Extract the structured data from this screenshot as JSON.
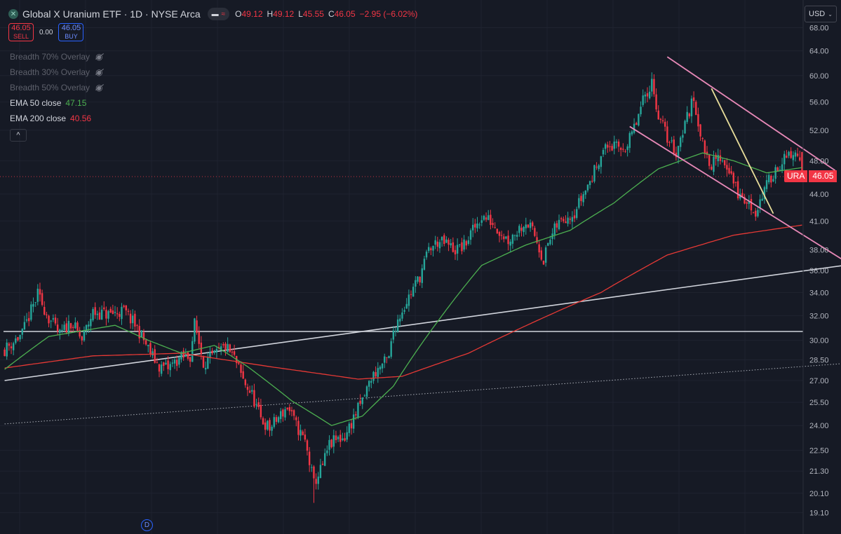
{
  "header": {
    "logo_glyph": "✕",
    "symbol_title": "Global X Uranium ETF · 1D · NYSE Arca",
    "ohlc": {
      "o_label": "O",
      "o_value": "49.12",
      "h_label": "H",
      "h_value": "49.12",
      "l_label": "L",
      "l_value": "45.55",
      "c_label": "C",
      "c_value": "46.05",
      "change": "−2.95 (−6.02%)"
    }
  },
  "trade": {
    "sell_price": "46.05",
    "sell_label": "SELL",
    "spread": "0.00",
    "buy_price": "46.05",
    "buy_label": "BUY"
  },
  "indicators": {
    "breadth70": "Breadth 70% Overlay",
    "breadth30": "Breadth 30% Overlay",
    "breadth50": "Breadth 50% Overlay",
    "ema50_label": "EMA 50 close",
    "ema50_value": "47.15",
    "ema200_label": "EMA 200 close",
    "ema200_value": "40.56",
    "collapse_glyph": "^"
  },
  "currency": {
    "label": "USD",
    "chevron": "⌄"
  },
  "last_price": {
    "symbol": "URA",
    "value": "46.05"
  },
  "event_marker": "D",
  "colors": {
    "background": "#161a25",
    "up": "#26a69a",
    "down": "#f23645",
    "ema50": "#4caf50",
    "ema200": "#e53935",
    "channel": "#e889b8",
    "wedge": "#e8dd9a",
    "trendline": "#d1d4dc",
    "grid": "#1f2330"
  },
  "chart_data": {
    "type": "candlestick",
    "y_scale": "log",
    "y_ticks": [
      "68.00",
      "64.00",
      "60.00",
      "56.00",
      "52.00",
      "48.00",
      "44.00",
      "41.00",
      "38.00",
      "36.00",
      "34.00",
      "32.00",
      "30.00",
      "28.50",
      "27.00",
      "25.50",
      "24.00",
      "22.50",
      "21.30",
      "20.10",
      "19.10"
    ],
    "close_anchors": [
      [
        0,
        29.3
      ],
      [
        8,
        30.5
      ],
      [
        15,
        33.8
      ],
      [
        20,
        31.8
      ],
      [
        25,
        30.4
      ],
      [
        30,
        31.5
      ],
      [
        35,
        30.0
      ],
      [
        40,
        32.3
      ],
      [
        47,
        32.1
      ],
      [
        54,
        32.4
      ],
      [
        60,
        31.0
      ],
      [
        66,
        29.0
      ],
      [
        70,
        28.0
      ],
      [
        74,
        27.9
      ],
      [
        79,
        28.6
      ],
      [
        84,
        28.8
      ],
      [
        86,
        31.3
      ],
      [
        90,
        28.3
      ],
      [
        95,
        28.8
      ],
      [
        100,
        29.5
      ],
      [
        104,
        28.6
      ],
      [
        108,
        27.0
      ],
      [
        112,
        26.0
      ],
      [
        116,
        24.4
      ],
      [
        120,
        23.8
      ],
      [
        124,
        24.5
      ],
      [
        128,
        25.2
      ],
      [
        132,
        24.0
      ],
      [
        136,
        23.0
      ],
      [
        140,
        20.6
      ],
      [
        144,
        21.6
      ],
      [
        147,
        22.8
      ],
      [
        150,
        23.1
      ],
      [
        154,
        23.3
      ],
      [
        158,
        24.5
      ],
      [
        162,
        25.6
      ],
      [
        166,
        27.2
      ],
      [
        170,
        28.0
      ],
      [
        174,
        28.6
      ],
      [
        176,
        30.8
      ],
      [
        180,
        32.5
      ],
      [
        184,
        34.0
      ],
      [
        188,
        35.5
      ],
      [
        192,
        38.0
      ],
      [
        196,
        38.8
      ],
      [
        200,
        38.6
      ],
      [
        204,
        38.0
      ],
      [
        208,
        38.4
      ],
      [
        212,
        40.0
      ],
      [
        216,
        41.5
      ],
      [
        220,
        41.0
      ],
      [
        224,
        40.0
      ],
      [
        228,
        39.0
      ],
      [
        232,
        40.0
      ],
      [
        236,
        41.0
      ],
      [
        240,
        39.5
      ],
      [
        244,
        37.0
      ],
      [
        246,
        38.6
      ],
      [
        250,
        40.5
      ],
      [
        254,
        41.5
      ],
      [
        258,
        42.0
      ],
      [
        262,
        44.0
      ],
      [
        266,
        46.0
      ],
      [
        270,
        49.0
      ],
      [
        274,
        50.0
      ],
      [
        278,
        49.5
      ],
      [
        282,
        50.0
      ],
      [
        286,
        53.0
      ],
      [
        290,
        57.0
      ],
      [
        293,
        59.0
      ],
      [
        296,
        54.0
      ],
      [
        300,
        51.0
      ],
      [
        304,
        49.0
      ],
      [
        308,
        53.0
      ],
      [
        312,
        56.5
      ],
      [
        316,
        50.0
      ],
      [
        320,
        47.5
      ],
      [
        324,
        48.5
      ],
      [
        328,
        47.0
      ],
      [
        332,
        44.0
      ],
      [
        336,
        43.0
      ],
      [
        340,
        42.0
      ],
      [
        344,
        44.5
      ],
      [
        348,
        46.5
      ],
      [
        352,
        48.0
      ],
      [
        356,
        48.5
      ],
      [
        359,
        49.0
      ],
      [
        361,
        46.05
      ]
    ],
    "ema50_anchors": [
      [
        0,
        27.8
      ],
      [
        20,
        30.3
      ],
      [
        50,
        31.2
      ],
      [
        65,
        30.0
      ],
      [
        80,
        29.0
      ],
      [
        95,
        29.6
      ],
      [
        110,
        28.0
      ],
      [
        130,
        25.6
      ],
      [
        148,
        24.0
      ],
      [
        162,
        24.6
      ],
      [
        176,
        26.6
      ],
      [
        196,
        31.5
      ],
      [
        216,
        36.5
      ],
      [
        236,
        38.5
      ],
      [
        256,
        40.0
      ],
      [
        276,
        43.0
      ],
      [
        296,
        47.0
      ],
      [
        316,
        49.0
      ],
      [
        330,
        48.0
      ],
      [
        345,
        46.5
      ],
      [
        361,
        47.15
      ]
    ],
    "ema200_anchors": [
      [
        0,
        27.9
      ],
      [
        40,
        28.8
      ],
      [
        80,
        29.0
      ],
      [
        120,
        28.0
      ],
      [
        160,
        27.1
      ],
      [
        180,
        27.3
      ],
      [
        210,
        29.0
      ],
      [
        240,
        31.5
      ],
      [
        270,
        34.0
      ],
      [
        300,
        37.5
      ],
      [
        330,
        39.5
      ],
      [
        361,
        40.56
      ]
    ],
    "trendlines": [
      {
        "kind": "solid",
        "start": [
          0,
          27.0
        ],
        "end": [
          380,
          36.5
        ]
      },
      {
        "kind": "dotted",
        "start": [
          0,
          24.1
        ],
        "end": [
          386,
          28.3
        ]
      },
      {
        "kind": "horizontal",
        "value": 30.7
      }
    ],
    "channel": [
      {
        "start": [
          300,
          63.0
        ],
        "end": [
          376,
          46.8
        ]
      },
      {
        "start": [
          283,
          52.5
        ],
        "end": [
          382,
          36.7
        ]
      }
    ],
    "wedge": {
      "start": [
        320,
        58.0
      ],
      "end": [
        348,
        41.8
      ]
    }
  }
}
